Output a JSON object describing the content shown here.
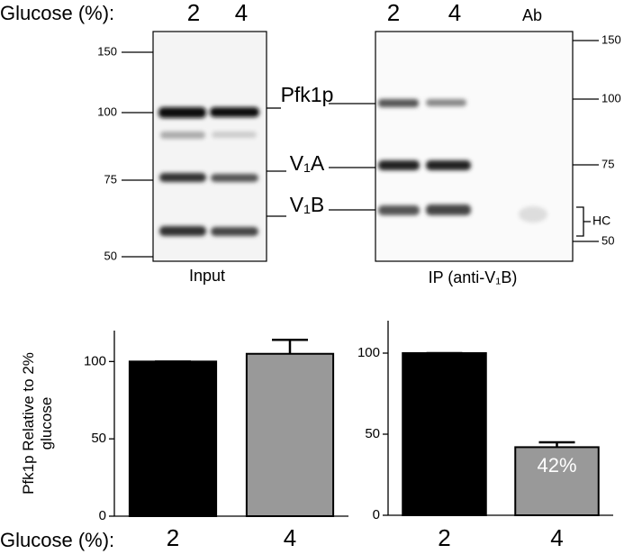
{
  "blots": {
    "condition_label": "Glucose (%):",
    "input": {
      "lanes": [
        "2",
        "4"
      ],
      "caption": "Input",
      "markers": [
        150,
        100,
        75,
        50
      ]
    },
    "bands": [
      "Pfk1p",
      "V₁A",
      "V₁B"
    ],
    "ip": {
      "lanes": [
        "2",
        "4",
        "Ab"
      ],
      "caption": "IP (anti-V₁B)",
      "markers": [
        150,
        100,
        75,
        50
      ],
      "heavy_chain": "HC"
    }
  },
  "chart_data": [
    {
      "type": "bar",
      "y_label": "Pfk1p Relative to 2% glucose",
      "x_label": "Glucose (%):",
      "categories": [
        "2",
        "4"
      ],
      "values": [
        100,
        105
      ],
      "errors": [
        0,
        9
      ],
      "colors": [
        "#000000",
        "#999999"
      ],
      "ylim": [
        0,
        120
      ],
      "yticks": [
        0,
        50,
        100
      ]
    },
    {
      "type": "bar",
      "categories": [
        "2",
        "4"
      ],
      "values": [
        100,
        42
      ],
      "errors": [
        0,
        3
      ],
      "value_labels": [
        null,
        "42%"
      ],
      "colors": [
        "#000000",
        "#999999"
      ],
      "ylim": [
        0,
        120
      ],
      "yticks": [
        0,
        50,
        100
      ]
    }
  ]
}
